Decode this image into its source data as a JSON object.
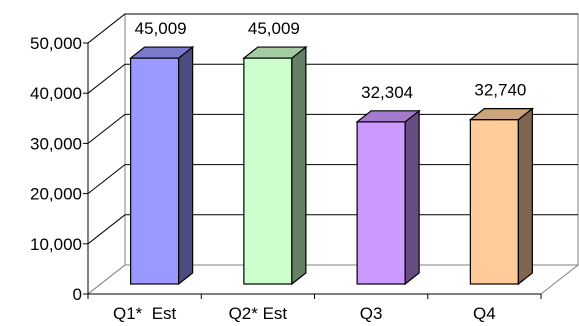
{
  "chart_data": {
    "type": "bar",
    "categories": [
      "Q1*  Est",
      "Q2* Est",
      "Q3",
      "Q4"
    ],
    "values": [
      45009,
      45009,
      32304,
      32740
    ],
    "value_labels": [
      "45,009",
      "45,009",
      "32,304",
      "32,740"
    ],
    "y_ticks": [
      0,
      10000,
      20000,
      30000,
      40000,
      50000
    ],
    "y_tick_labels": [
      "0",
      "10,000",
      "20,000",
      "30,000",
      "40,000",
      "50,000"
    ],
    "ylim": [
      0,
      50000
    ],
    "grid": true,
    "legend": "none",
    "colors": {
      "bars_front": [
        "#9999ff",
        "#ccffcc",
        "#cc99ff",
        "#ffcc99"
      ],
      "bars_side": [
        "#4c4c80",
        "#668066",
        "#664c80",
        "#806650"
      ],
      "bars_top": [
        "#7a7acc",
        "#a3cca3",
        "#a37acc",
        "#cca37a"
      ],
      "gridline": "#000000",
      "axis": "#808080"
    }
  }
}
